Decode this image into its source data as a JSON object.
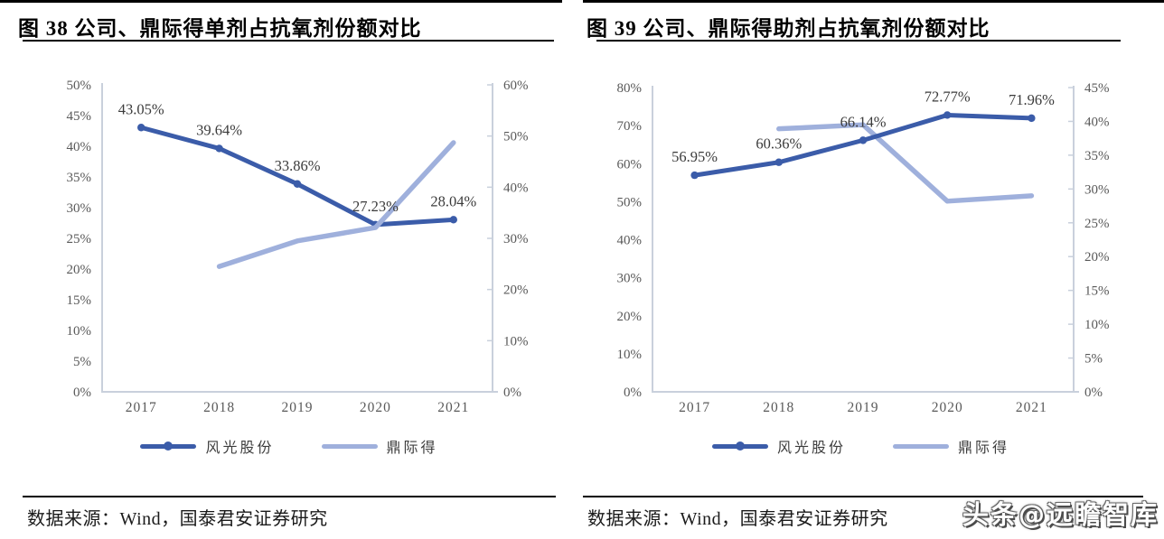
{
  "page": {
    "watermark": "头条@远瞻智库",
    "source_text": "数据来源：Wind，国泰君安证券研究"
  },
  "figures": [
    {
      "title": "图 38 公司、鼎际得单剂占抗氧剂份额对比",
      "source": "数据来源：Wind，国泰君安证券研究"
    },
    {
      "title": "图 39 公司、鼎际得助剂占抗氧剂份额对比",
      "source": "数据来源：Wind，国泰君安证券研究"
    }
  ],
  "colors": {
    "series_dark": "#3b5ca9",
    "series_light": "#9fb0dc",
    "axis_line": "#c9d0dc",
    "axis_text": "#595959",
    "data_label_text": "#3b3b3b"
  },
  "chart_data": [
    {
      "type": "line",
      "title": "图 38 公司、鼎际得单剂占抗氧剂份额对比",
      "categories": [
        "2017",
        "2018",
        "2019",
        "2020",
        "2021"
      ],
      "left_axis": {
        "min": 0,
        "max": 50,
        "step": 5,
        "tick_labels": [
          "0%",
          "5%",
          "10%",
          "15%",
          "20%",
          "25%",
          "30%",
          "35%",
          "40%",
          "45%",
          "50%"
        ]
      },
      "right_axis": {
        "min": 0,
        "max": 60,
        "step": 10,
        "tick_labels": [
          "0%",
          "10%",
          "20%",
          "30%",
          "40%",
          "50%",
          "60%"
        ]
      },
      "grid": false,
      "legend_position": "bottom",
      "series": [
        {
          "name": "风光股份",
          "axis": "left",
          "color": "#3b5ca9",
          "markers": true,
          "values": [
            43.05,
            39.64,
            33.86,
            27.23,
            28.04
          ],
          "labels": [
            "43.05%",
            "39.64%",
            "33.86%",
            "27.23%",
            "28.04%"
          ]
        },
        {
          "name": "鼎际得",
          "axis": "right",
          "color": "#9fb0dc",
          "markers": false,
          "values": [
            null,
            24.5,
            29.5,
            32.1,
            48.7
          ],
          "labels": null
        }
      ]
    },
    {
      "type": "line",
      "title": "图 39 公司、鼎际得助剂占抗氧剂份额对比",
      "categories": [
        "2017",
        "2018",
        "2019",
        "2020",
        "2021"
      ],
      "left_axis": {
        "min": 0,
        "max": 80,
        "step": 10,
        "tick_labels": [
          "0%",
          "10%",
          "20%",
          "30%",
          "40%",
          "50%",
          "60%",
          "70%",
          "80%"
        ]
      },
      "right_axis": {
        "min": 0,
        "max": 45,
        "step": 5,
        "tick_labels": [
          "0%",
          "5%",
          "10%",
          "15%",
          "20%",
          "25%",
          "30%",
          "35%",
          "40%",
          "45%"
        ]
      },
      "grid": false,
      "legend_position": "bottom",
      "series": [
        {
          "name": "风光股份",
          "axis": "left",
          "color": "#3b5ca9",
          "markers": true,
          "values": [
            56.95,
            60.36,
            66.14,
            72.77,
            71.96
          ],
          "labels": [
            "56.95%",
            "60.36%",
            "66.14%",
            "72.77%",
            "71.96%"
          ]
        },
        {
          "name": "鼎际得",
          "axis": "right",
          "color": "#9fb0dc",
          "markers": false,
          "values": [
            null,
            38.9,
            39.5,
            28.2,
            29.0
          ],
          "labels": null
        }
      ]
    }
  ]
}
